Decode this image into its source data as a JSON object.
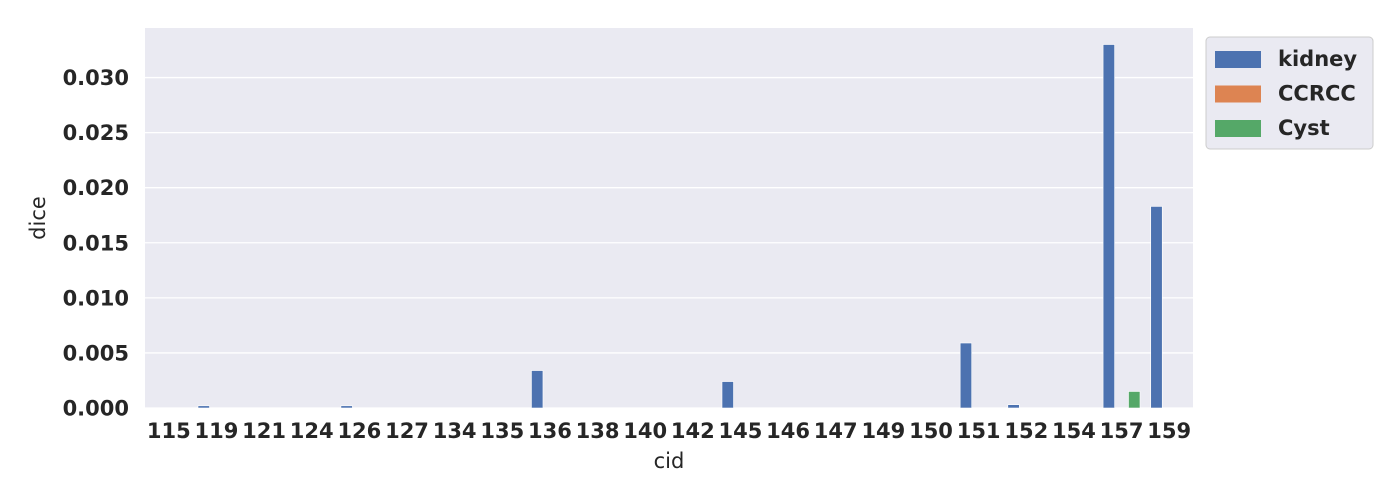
{
  "chart_data": {
    "type": "bar",
    "xlabel": "cid",
    "ylabel": "dice",
    "ylim": [
      0,
      0.0345
    ],
    "yticks": [
      0.0,
      0.005,
      0.01,
      0.015,
      0.02,
      0.025,
      0.03
    ],
    "ytick_labels": [
      "0.000",
      "0.005",
      "0.010",
      "0.015",
      "0.020",
      "0.025",
      "0.030"
    ],
    "grid": true,
    "legend_position": "outside-top-right",
    "categories": [
      "115",
      "119",
      "121",
      "124",
      "126",
      "127",
      "134",
      "135",
      "136",
      "138",
      "140",
      "142",
      "145",
      "146",
      "147",
      "149",
      "150",
      "151",
      "152",
      "154",
      "157",
      "159"
    ],
    "series": [
      {
        "name": "kidney",
        "color": "#4c72b0",
        "values": [
          0,
          0.0002,
          0,
          0,
          0.0002,
          0,
          0,
          0,
          0.0034,
          0,
          0,
          0,
          0.0024,
          0,
          0,
          0,
          0,
          0.0059,
          0.0003,
          0,
          0.033,
          0.0183
        ]
      },
      {
        "name": "CCRCC",
        "color": "#dd8452",
        "values": [
          0,
          0,
          0,
          0,
          0,
          0,
          0,
          0,
          0,
          0,
          0,
          0,
          0,
          0,
          0,
          0,
          0,
          0,
          0,
          0,
          0,
          0
        ]
      },
      {
        "name": "Cyst",
        "color": "#55a868",
        "values": [
          0,
          0,
          0,
          0,
          0,
          0,
          0,
          0,
          0,
          0,
          0,
          0,
          0,
          0,
          0,
          0,
          0,
          0,
          0,
          0,
          0.0015,
          0
        ]
      }
    ]
  },
  "style": {
    "plot_background": "#eaeaf2",
    "grid_color": "#ffffff",
    "legend_background": "#eaeaf2",
    "legend_border": "#cccccc"
  }
}
